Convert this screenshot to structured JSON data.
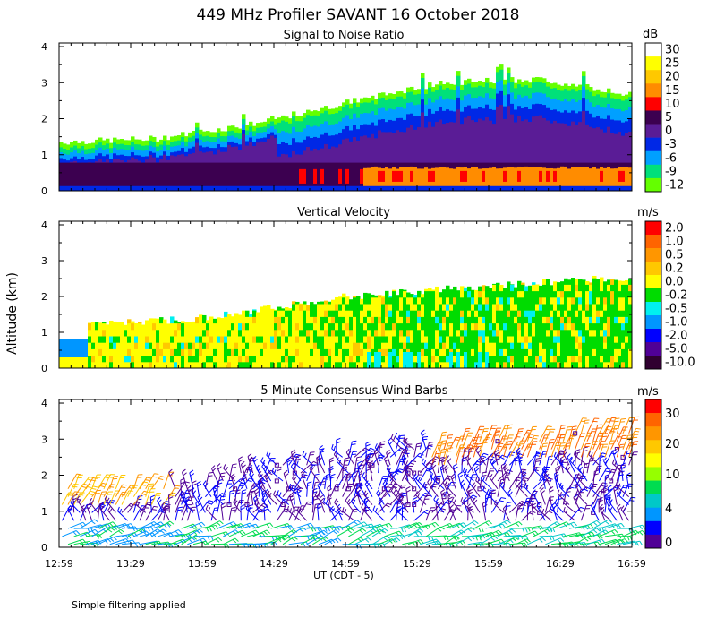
{
  "title": "449 MHz Profiler SAVANT 16 October 2018",
  "ylabel": "Altitude (km)",
  "xlabel": "UT  (CDT - 5)",
  "footnote": "Simple filtering applied",
  "x_ticks": [
    "12:59",
    "13:29",
    "13:59",
    "14:29",
    "14:59",
    "15:29",
    "15:59",
    "16:29",
    "16:59"
  ],
  "y_ticks": [
    "0",
    "1",
    "2",
    "3",
    "4"
  ],
  "chart_data": [
    {
      "type": "heatmap",
      "title": "Signal to Noise Ratio",
      "unit": "dB",
      "x_range": [
        "12:59",
        "16:59"
      ],
      "ylim": [
        0,
        4
      ],
      "colorbar": {
        "labels": [
          "30",
          "25",
          "20",
          "15",
          "10",
          "5",
          "0",
          "-3",
          "-6",
          "-9",
          "-12"
        ],
        "colors": [
          "#ffffff",
          "#ffff00",
          "#ffc800",
          "#ff8c00",
          "#ff0000",
          "#3c0050",
          "#5a1c96",
          "#0028e6",
          "#00a0ff",
          "#00e07a",
          "#64ff00"
        ]
      },
      "echo_top_km": [
        [
          0,
          1.35
        ],
        [
          0.25,
          1.45
        ],
        [
          0.5,
          1.85
        ],
        [
          0.75,
          2.45
        ],
        [
          1,
          3.0
        ],
        [
          1.25,
          3.1
        ],
        [
          1.5,
          2.65
        ]
      ]
    },
    {
      "type": "heatmap",
      "title": "Vertical Velocity",
      "unit": "m/s",
      "x_range": [
        "12:59",
        "16:59"
      ],
      "ylim": [
        0,
        4
      ],
      "colorbar": {
        "labels": [
          "2.0",
          "1.0",
          "0.5",
          "0.2",
          "0.0",
          "-0.2",
          "-0.5",
          "-1.0",
          "-2.0",
          "-5.0",
          "-10.0"
        ],
        "colors": [
          "#ff0000",
          "#ff6400",
          "#ff9600",
          "#ffc800",
          "#ffff00",
          "#00dc00",
          "#00f0f0",
          "#0096ff",
          "#0000ff",
          "#500096",
          "#300030"
        ]
      }
    },
    {
      "type": "scatter",
      "title": "5 Minute Consensus Wind Barbs",
      "unit": "m/s",
      "x_range": [
        "12:59",
        "16:59"
      ],
      "ylim": [
        0,
        4
      ],
      "colorbar": {
        "labels": [
          "30",
          "20",
          "10",
          "4",
          "0"
        ],
        "colors": [
          "#ff0000",
          "#ff6400",
          "#ff9600",
          "#ffc800",
          "#ffff00",
          "#96ff00",
          "#00dc50",
          "#00c8c8",
          "#0096ff",
          "#0000ff",
          "#500096"
        ]
      }
    }
  ]
}
